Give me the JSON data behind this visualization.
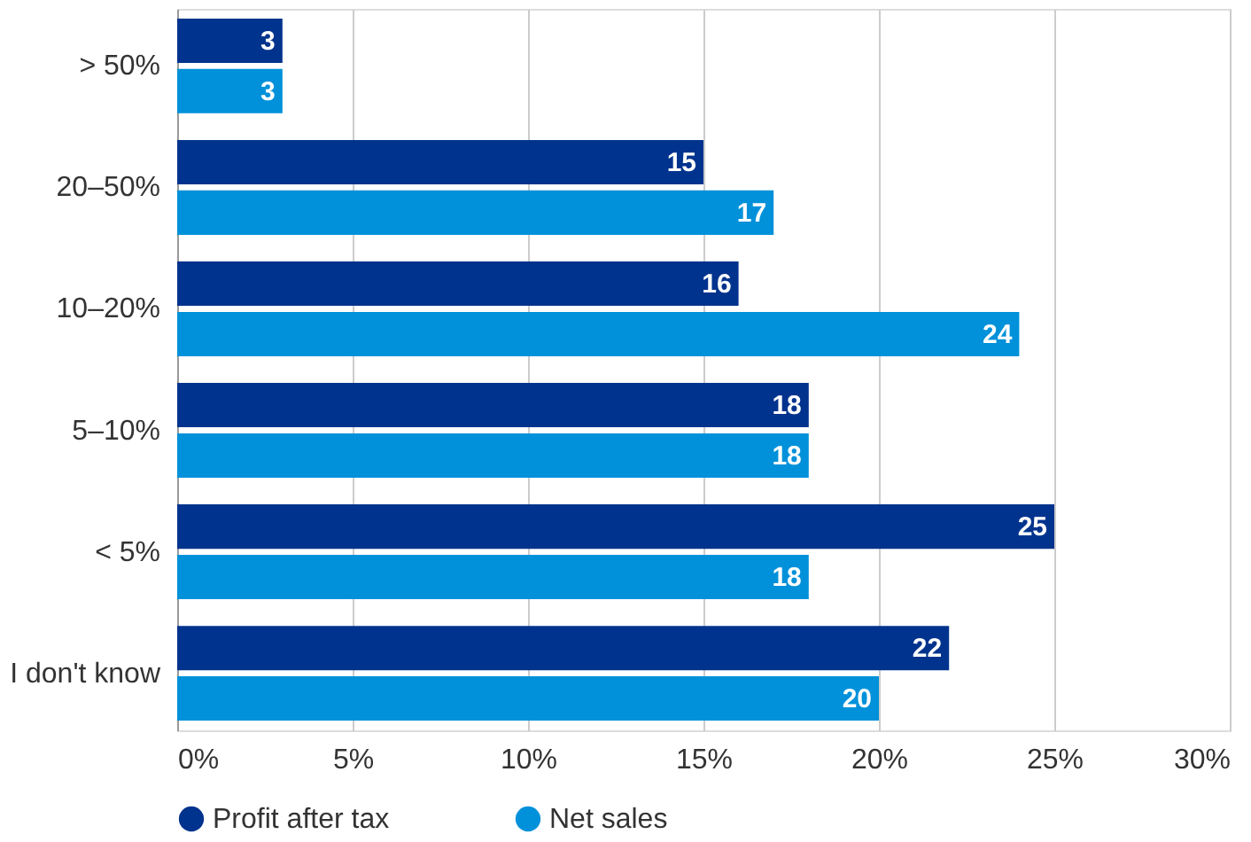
{
  "chart_data": {
    "type": "bar",
    "orientation": "horizontal",
    "categories": [
      "> 50%",
      "20–50%",
      "10–20%",
      "5–10%",
      "< 5%",
      "I don't know"
    ],
    "series": [
      {
        "name": "Profit after tax",
        "color": "#00338d",
        "values": [
          3,
          15,
          16,
          18,
          25,
          22
        ]
      },
      {
        "name": "Net sales",
        "color": "#0091da",
        "values": [
          3,
          17,
          24,
          18,
          18,
          20
        ]
      }
    ],
    "xlim": [
      0,
      30
    ],
    "xticks": [
      {
        "value": 0,
        "label": "0%"
      },
      {
        "value": 5,
        "label": "5%"
      },
      {
        "value": 10,
        "label": "10%"
      },
      {
        "value": 15,
        "label": "15%"
      },
      {
        "value": 20,
        "label": "20%"
      },
      {
        "value": 25,
        "label": "25%"
      },
      {
        "value": 30,
        "label": "30%"
      }
    ],
    "grid": "x",
    "legend": "bottom",
    "marker": "circle",
    "data_labels": true
  }
}
